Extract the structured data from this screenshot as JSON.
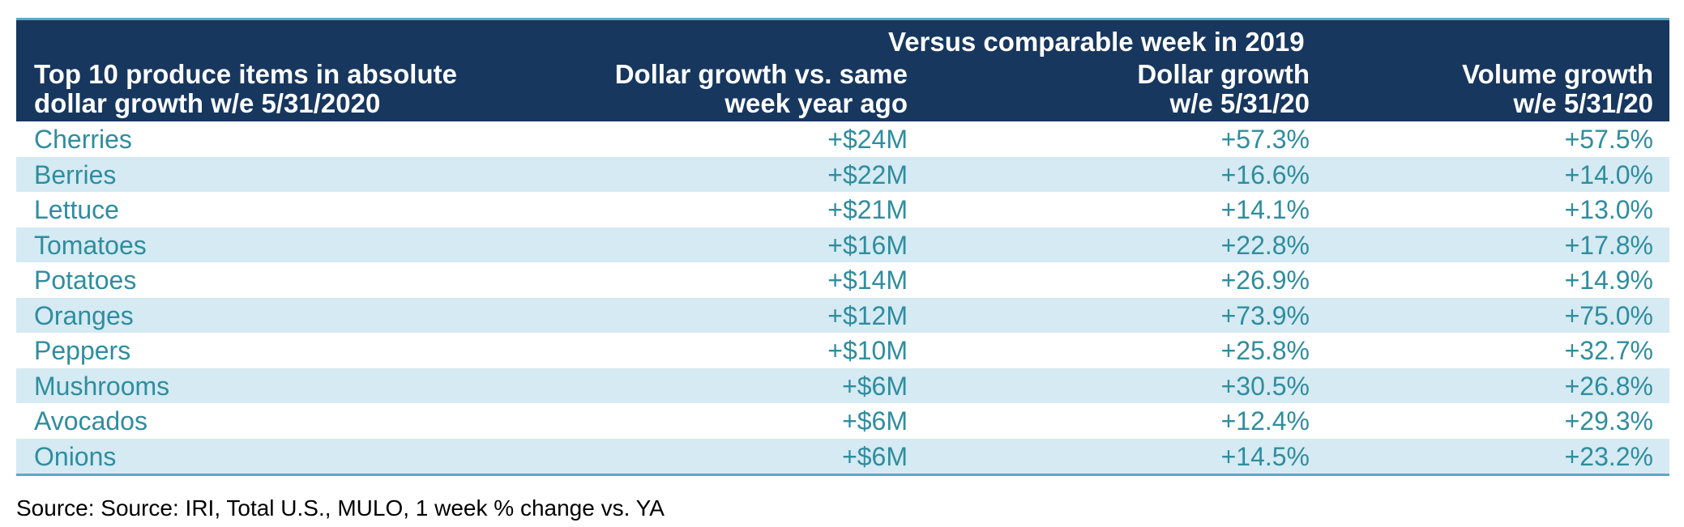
{
  "chart_data": {
    "type": "table",
    "title": "",
    "span_header": "Versus comparable week in 2019",
    "columns": [
      {
        "line1": "Top 10 produce items in absolute",
        "line2": "dollar growth w/e 5/31/2020"
      },
      {
        "line1": "Dollar growth vs. same",
        "line2": "week year ago"
      },
      {
        "line1": "Dollar growth",
        "line2": "w/e 5/31/20"
      },
      {
        "line1": "Volume growth",
        "line2": "w/e 5/31/20"
      }
    ],
    "rows": [
      {
        "item": "Cherries",
        "dollar_growth": "+$24M",
        "dollar_pct": "+57.3%",
        "volume_pct": "+57.5%"
      },
      {
        "item": "Berries",
        "dollar_growth": "+$22M",
        "dollar_pct": "+16.6%",
        "volume_pct": "+14.0%"
      },
      {
        "item": "Lettuce",
        "dollar_growth": "+$21M",
        "dollar_pct": "+14.1%",
        "volume_pct": "+13.0%"
      },
      {
        "item": "Tomatoes",
        "dollar_growth": "+$16M",
        "dollar_pct": "+22.8%",
        "volume_pct": "+17.8%"
      },
      {
        "item": "Potatoes",
        "dollar_growth": "+$14M",
        "dollar_pct": "+26.9%",
        "volume_pct": "+14.9%"
      },
      {
        "item": "Oranges",
        "dollar_growth": "+$12M",
        "dollar_pct": "+73.9%",
        "volume_pct": "+75.0%"
      },
      {
        "item": "Peppers",
        "dollar_growth": "+$10M",
        "dollar_pct": "+25.8%",
        "volume_pct": "+32.7%"
      },
      {
        "item": "Mushrooms",
        "dollar_growth": "+$6M",
        "dollar_pct": "+30.5%",
        "volume_pct": "+26.8%"
      },
      {
        "item": "Avocados",
        "dollar_growth": "+$6M",
        "dollar_pct": "+12.4%",
        "volume_pct": "+29.3%"
      },
      {
        "item": "Onions",
        "dollar_growth": "+$6M",
        "dollar_pct": "+14.5%",
        "volume_pct": "+23.2%"
      }
    ],
    "source": "Source: Source: IRI, Total U.S., MULO, 1 week % change vs. YA",
    "colors": {
      "header_bg": "#17375e",
      "header_text": "#ffffff",
      "row_text": "#2f8d9f",
      "alt_row_bg": "#d5eaf2",
      "rule": "#5aa9c4"
    }
  }
}
